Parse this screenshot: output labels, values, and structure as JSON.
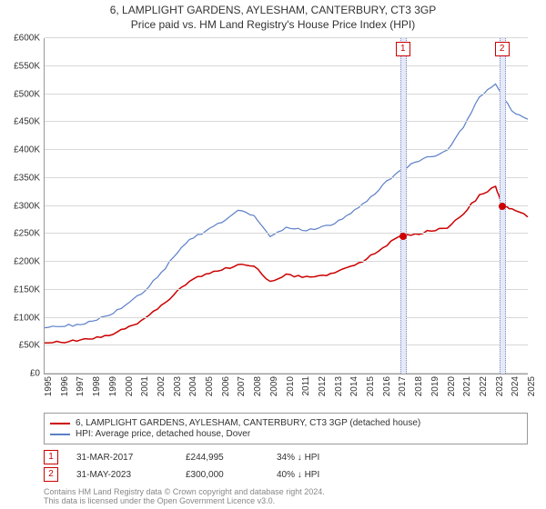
{
  "title": "6, LAMPLIGHT GARDENS, AYLESHAM, CANTERBURY, CT3 3GP",
  "subtitle": "Price paid vs. HM Land Registry's House Price Index (HPI)",
  "chart": {
    "type": "line",
    "x_years": [
      1995,
      1996,
      1997,
      1998,
      1999,
      2000,
      2001,
      2002,
      2003,
      2004,
      2005,
      2006,
      2007,
      2008,
      2009,
      2010,
      2011,
      2012,
      2013,
      2014,
      2015,
      2016,
      2017,
      2018,
      2019,
      2020,
      2021,
      2022,
      2023,
      2024,
      2025
    ],
    "ylim": [
      0,
      600000
    ],
    "ytick_step": 50000,
    "ytick_labels": [
      "£0",
      "£50K",
      "£100K",
      "£150K",
      "£200K",
      "£250K",
      "£300K",
      "£350K",
      "£400K",
      "£450K",
      "£500K",
      "£550K",
      "£600K"
    ],
    "grid_color": "#d8d8d8",
    "background_color": "#ffffff",
    "axis_color": "#999999",
    "label_fontsize": 10,
    "title_fontsize": 12,
    "series": [
      {
        "name_key": "legend.series1",
        "color": "#cc0000",
        "width": 1.5,
        "data": [
          [
            1995,
            55000
          ],
          [
            1996,
            56000
          ],
          [
            1997,
            58000
          ],
          [
            1998,
            62000
          ],
          [
            1999,
            68000
          ],
          [
            2000,
            80000
          ],
          [
            2001,
            95000
          ],
          [
            2002,
            115000
          ],
          [
            2003,
            140000
          ],
          [
            2004,
            165000
          ],
          [
            2005,
            178000
          ],
          [
            2006,
            185000
          ],
          [
            2007,
            195000
          ],
          [
            2008,
            192000
          ],
          [
            2009,
            165000
          ],
          [
            2010,
            178000
          ],
          [
            2011,
            172000
          ],
          [
            2012,
            175000
          ],
          [
            2013,
            180000
          ],
          [
            2014,
            192000
          ],
          [
            2015,
            205000
          ],
          [
            2016,
            225000
          ],
          [
            2017,
            244995
          ],
          [
            2018,
            250000
          ],
          [
            2019,
            255000
          ],
          [
            2020,
            260000
          ],
          [
            2021,
            285000
          ],
          [
            2022,
            320000
          ],
          [
            2023,
            335000
          ],
          [
            2023.4,
            300000
          ],
          [
            2024,
            295000
          ],
          [
            2025,
            280000
          ]
        ]
      },
      {
        "name_key": "legend.series2",
        "color": "#5b7fc7",
        "width": 1.2,
        "data": [
          [
            1995,
            82000
          ],
          [
            1996,
            84000
          ],
          [
            1997,
            88000
          ],
          [
            1998,
            94000
          ],
          [
            1999,
            104000
          ],
          [
            2000,
            122000
          ],
          [
            2001,
            142000
          ],
          [
            2002,
            172000
          ],
          [
            2003,
            208000
          ],
          [
            2004,
            240000
          ],
          [
            2005,
            255000
          ],
          [
            2006,
            270000
          ],
          [
            2007,
            292000
          ],
          [
            2008,
            283000
          ],
          [
            2009,
            245000
          ],
          [
            2010,
            262000
          ],
          [
            2011,
            256000
          ],
          [
            2012,
            260000
          ],
          [
            2013,
            268000
          ],
          [
            2014,
            286000
          ],
          [
            2015,
            308000
          ],
          [
            2016,
            338000
          ],
          [
            2017,
            362000
          ],
          [
            2018,
            378000
          ],
          [
            2019,
            388000
          ],
          [
            2020,
            400000
          ],
          [
            2021,
            440000
          ],
          [
            2022,
            495000
          ],
          [
            2023,
            518000
          ],
          [
            2024,
            470000
          ],
          [
            2025,
            455000
          ]
        ]
      }
    ],
    "events": [
      {
        "label": "1",
        "year": 2017.25,
        "color": "#cc0000",
        "price_y": 244995
      },
      {
        "label": "2",
        "year": 2023.4,
        "color": "#cc0000",
        "price_y": 300000
      }
    ]
  },
  "legend": {
    "series1": "6, LAMPLIGHT GARDENS, AYLESHAM, CANTERBURY, CT3 3GP (detached house)",
    "series2": "HPI: Average price, detached house, Dover"
  },
  "events_table": [
    {
      "badge": "1",
      "color": "#cc0000",
      "date": "31-MAR-2017",
      "price": "£244,995",
      "delta": "34% ↓ HPI"
    },
    {
      "badge": "2",
      "color": "#cc0000",
      "date": "31-MAY-2023",
      "price": "£300,000",
      "delta": "40% ↓ HPI"
    }
  ],
  "footer": {
    "line1": "Contains HM Land Registry data © Crown copyright and database right 2024.",
    "line2": "This data is licensed under the Open Government Licence v3.0."
  }
}
